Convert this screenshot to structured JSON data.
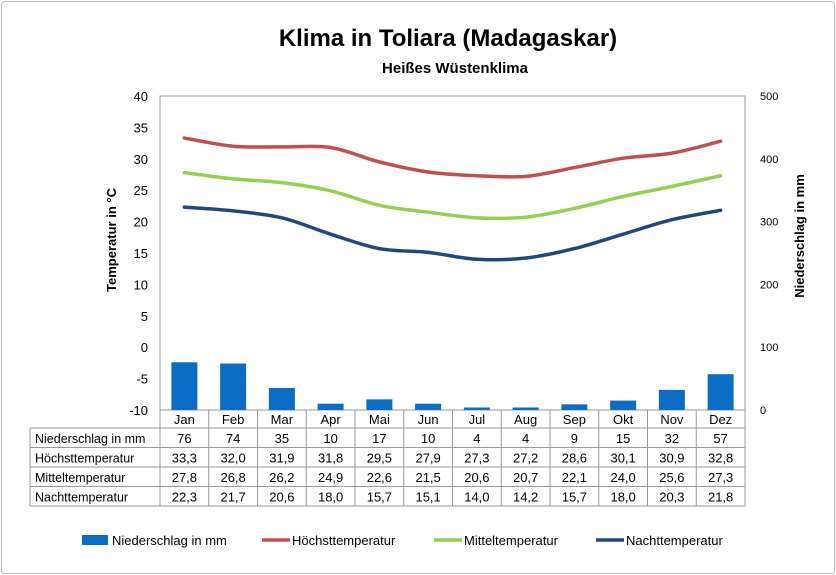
{
  "chart_data": {
    "type": "bar+line",
    "title": "Klima in Toliara (Madagaskar)",
    "subtitle": "Heißes Wüstenklima",
    "ylabel_left": "Temperatur in °C",
    "ylabel_right": "Niederschlag in mm",
    "ylim_left": [
      -10,
      40
    ],
    "yticks_left": [
      "40",
      "35",
      "30",
      "25",
      "20",
      "15",
      "10",
      "5",
      "0",
      "-5",
      "-10"
    ],
    "ylim_right": [
      0,
      500
    ],
    "yticks_right": [
      "500",
      "400",
      "300",
      "200",
      "100",
      "0"
    ],
    "categories": [
      "Jan",
      "Feb",
      "Mar",
      "Apr",
      "Mai",
      "Jun",
      "Jul",
      "Aug",
      "Sep",
      "Okt",
      "Nov",
      "Dez"
    ],
    "legend_position": "bottom",
    "series": [
      {
        "name": "Niederschlag in mm",
        "type": "bar",
        "axis": "right",
        "color": "#0b6cc4",
        "values": [
          76,
          74,
          35,
          10,
          17,
          10,
          4,
          4,
          9,
          15,
          32,
          57
        ],
        "labels": [
          "76",
          "74",
          "35",
          "10",
          "17",
          "10",
          "4",
          "4",
          "9",
          "15",
          "32",
          "57"
        ]
      },
      {
        "name": "Höchsttemperatur",
        "type": "line",
        "axis": "left",
        "color": "#c0504d",
        "values": [
          33.3,
          32.0,
          31.9,
          31.8,
          29.5,
          27.9,
          27.3,
          27.2,
          28.6,
          30.1,
          30.9,
          32.8
        ],
        "labels": [
          "33,3",
          "32,0",
          "31,9",
          "31,8",
          "29,5",
          "27,9",
          "27,3",
          "27,2",
          "28,6",
          "30,1",
          "30,9",
          "32,8"
        ]
      },
      {
        "name": "Mitteltemperatur",
        "type": "line",
        "axis": "left",
        "color": "#92d050",
        "values": [
          27.8,
          26.8,
          26.2,
          24.9,
          22.6,
          21.5,
          20.6,
          20.7,
          22.1,
          24.0,
          25.6,
          27.3
        ],
        "labels": [
          "27,8",
          "26,8",
          "26,2",
          "24,9",
          "22,6",
          "21,5",
          "20,6",
          "20,7",
          "22,1",
          "24,0",
          "25,6",
          "27,3"
        ]
      },
      {
        "name": "Nachttemperatur",
        "type": "line",
        "axis": "left",
        "color": "#1f497d",
        "values": [
          22.3,
          21.7,
          20.6,
          18.0,
          15.7,
          15.1,
          14.0,
          14.2,
          15.7,
          18.0,
          20.3,
          21.8
        ],
        "labels": [
          "22,3",
          "21,7",
          "20,6",
          "18,0",
          "15,7",
          "15,1",
          "14,0",
          "14,2",
          "15,7",
          "18,0",
          "20,3",
          "21,8"
        ]
      }
    ]
  }
}
